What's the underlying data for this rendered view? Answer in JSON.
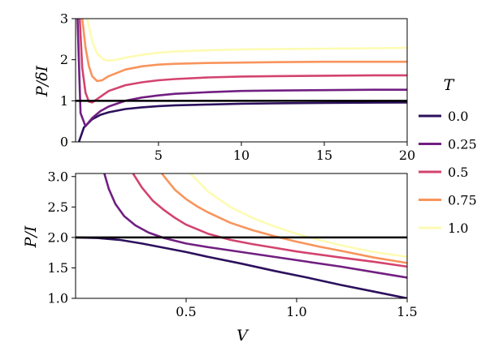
{
  "chart_data": [
    {
      "type": "line",
      "ylabel": "P/δI",
      "xlim": [
        0,
        20
      ],
      "ylim": [
        0,
        3
      ],
      "xticks": [
        "5",
        "10",
        "15",
        "20"
      ],
      "yticks": [
        "0",
        "1",
        "2",
        "3"
      ],
      "reference_line": 1.0,
      "series": [
        {
          "name": "0.0",
          "color": "#2c105c",
          "x": [
            0.2,
            0.5,
            1,
            1.5,
            2,
            3,
            4,
            5,
            6,
            8,
            10,
            12,
            15,
            18,
            20
          ],
          "y": [
            0.0,
            0.35,
            0.55,
            0.66,
            0.72,
            0.8,
            0.84,
            0.87,
            0.89,
            0.91,
            0.93,
            0.94,
            0.95,
            0.955,
            0.96
          ]
        },
        {
          "name": "0.25",
          "color": "#711f81",
          "x": [
            0.12,
            0.3,
            0.6,
            1,
            1.5,
            2,
            3,
            4,
            5,
            6,
            8,
            10,
            12,
            15,
            18,
            20
          ],
          "y": [
            3.0,
            0.7,
            0.38,
            0.58,
            0.75,
            0.86,
            1.0,
            1.08,
            1.13,
            1.17,
            1.21,
            1.24,
            1.25,
            1.26,
            1.27,
            1.27
          ]
        },
        {
          "name": "0.5",
          "color": "#d3436e",
          "x": [
            0.25,
            0.4,
            0.6,
            0.8,
            1,
            1.5,
            2,
            3,
            4,
            5,
            6,
            8,
            10,
            12,
            15,
            18,
            20
          ],
          "y": [
            3.0,
            1.8,
            1.2,
            0.98,
            0.96,
            1.1,
            1.24,
            1.38,
            1.45,
            1.5,
            1.53,
            1.57,
            1.59,
            1.6,
            1.61,
            1.62,
            1.62
          ]
        },
        {
          "name": "0.75",
          "color": "#f8945c",
          "x": [
            0.4,
            0.6,
            0.8,
            1,
            1.3,
            1.6,
            2,
            3,
            4,
            5,
            6,
            8,
            10,
            12,
            15,
            18,
            20
          ],
          "y": [
            3.0,
            2.3,
            1.85,
            1.6,
            1.48,
            1.5,
            1.6,
            1.76,
            1.84,
            1.88,
            1.9,
            1.92,
            1.93,
            1.94,
            1.95,
            1.95,
            1.95
          ]
        },
        {
          "name": "1.0",
          "color": "#fdfbb2",
          "x": [
            0.7,
            1,
            1.3,
            1.7,
            2,
            2.5,
            3,
            4,
            5,
            6,
            8,
            10,
            12,
            15,
            18,
            20
          ],
          "y": [
            3.0,
            2.45,
            2.15,
            2.0,
            1.98,
            2.0,
            2.05,
            2.12,
            2.17,
            2.2,
            2.23,
            2.25,
            2.26,
            2.27,
            2.28,
            2.29
          ]
        }
      ]
    },
    {
      "type": "line",
      "xlabel": "V",
      "ylabel": "P/I",
      "xlim": [
        0,
        1.5
      ],
      "ylim": [
        1.0,
        3.05
      ],
      "xticks": [
        "0.5",
        "1.0",
        "1.5"
      ],
      "yticks": [
        "1.0",
        "1.5",
        "2.0",
        "2.5",
        "3.0"
      ],
      "reference_line": 2.0,
      "series": [
        {
          "name": "0.0",
          "color": "#2c105c",
          "x": [
            0,
            0.1,
            0.2,
            0.3,
            0.4,
            0.5,
            0.6,
            0.75,
            0.9,
            1.05,
            1.2,
            1.35,
            1.5
          ],
          "y": [
            2.0,
            1.99,
            1.96,
            1.9,
            1.83,
            1.76,
            1.68,
            1.57,
            1.45,
            1.34,
            1.22,
            1.11,
            1.0
          ]
        },
        {
          "name": "0.25",
          "color": "#711f81",
          "x": [
            0.13,
            0.15,
            0.18,
            0.22,
            0.27,
            0.33,
            0.4,
            0.5,
            0.6,
            0.75,
            0.9,
            1.05,
            1.2,
            1.35,
            1.5
          ],
          "y": [
            3.05,
            2.8,
            2.55,
            2.35,
            2.2,
            2.08,
            1.99,
            1.9,
            1.84,
            1.76,
            1.68,
            1.6,
            1.52,
            1.43,
            1.34
          ]
        },
        {
          "name": "0.5",
          "color": "#d3436e",
          "x": [
            0.26,
            0.3,
            0.35,
            0.4,
            0.45,
            0.5,
            0.6,
            0.7,
            0.8,
            0.9,
            1.0,
            1.1,
            1.2,
            1.35,
            1.5
          ],
          "y": [
            3.05,
            2.82,
            2.6,
            2.45,
            2.32,
            2.21,
            2.06,
            1.96,
            1.89,
            1.83,
            1.77,
            1.72,
            1.67,
            1.6,
            1.52
          ]
        },
        {
          "name": "0.75",
          "color": "#f8945c",
          "x": [
            0.39,
            0.45,
            0.5,
            0.55,
            0.6,
            0.7,
            0.8,
            0.9,
            1.0,
            1.1,
            1.2,
            1.35,
            1.5
          ],
          "y": [
            3.05,
            2.78,
            2.63,
            2.51,
            2.41,
            2.24,
            2.12,
            2.02,
            1.93,
            1.85,
            1.78,
            1.67,
            1.58
          ]
        },
        {
          "name": "1.0",
          "color": "#fdfbb2",
          "x": [
            0.52,
            0.6,
            0.7,
            0.8,
            0.9,
            1.0,
            1.1,
            1.2,
            1.35,
            1.5
          ],
          "y": [
            3.05,
            2.75,
            2.5,
            2.32,
            2.18,
            2.06,
            1.96,
            1.87,
            1.76,
            1.68
          ]
        }
      ]
    }
  ],
  "legend": {
    "title": "T",
    "entries": [
      "0.0",
      "0.25",
      "0.5",
      "0.75",
      "1.0"
    ],
    "colors": [
      "#2c105c",
      "#711f81",
      "#d3436e",
      "#f8945c",
      "#fdfbb2"
    ]
  }
}
